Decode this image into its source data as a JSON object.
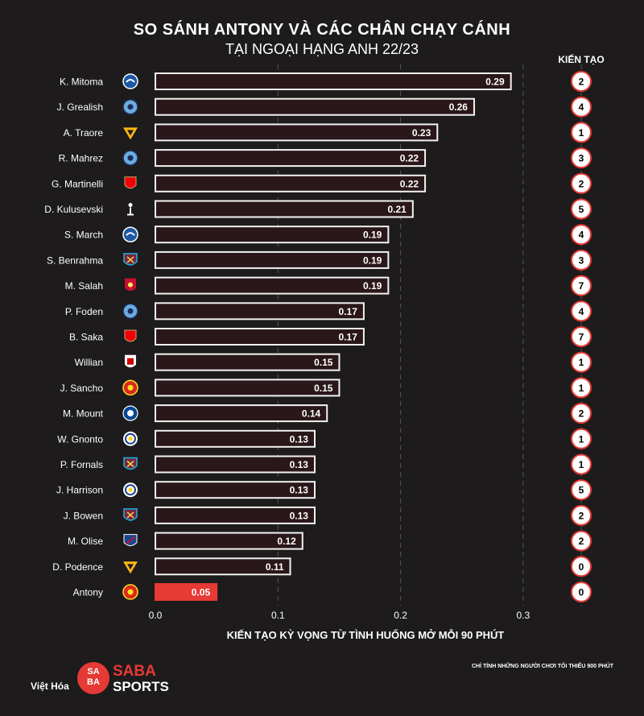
{
  "title": "SO SÁNH ANTONY VÀ CÁC CHÂN CHẠY CÁNH",
  "subtitle": "TẠI NGOẠI HẠNG ANH 22/23",
  "assist_header": "KIẾN TẠO",
  "footer": {
    "viet_hoa": "Việt Hóa",
    "logo_mark": "SA BA",
    "logo_saba": "SABA",
    "logo_sports": "SPORTS",
    "footnote": "CHỈ TÍNH NHỮNG NGƯỜI CHƠI TỐI THIỂU 900 PHÚT"
  },
  "colors": {
    "background": "#1d1b1b",
    "bar_fill": "#2a1719",
    "bar_border": "#f2f2f2",
    "highlight": "#e53a35",
    "grid": "#555555"
  },
  "chart_data": {
    "type": "bar",
    "orientation": "horizontal",
    "title": "SO SÁNH ANTONY VÀ CÁC CHÂN CHẠY CÁNH",
    "xlabel": "KIẾN TẠO KỲ VỌNG TỪ TÌNH HUỐNG MỞ MỖI 90 PHÚT",
    "xlim": [
      0,
      0.3
    ],
    "xticks": [
      "0.0",
      "0.1",
      "0.2",
      "0.3"
    ],
    "xtick_values": [
      0,
      0.1,
      0.2,
      0.3
    ],
    "grid": true,
    "highlight": "Antony",
    "players": [
      {
        "name": "K. Mitoma",
        "club": "brighton-logo",
        "value": 0.29,
        "label": "0.29",
        "assists": "2"
      },
      {
        "name": "J. Grealish",
        "club": "man-city-logo",
        "value": 0.26,
        "label": "0.26",
        "assists": "4"
      },
      {
        "name": "A. Traore",
        "club": "wolves-logo",
        "value": 0.23,
        "label": "0.23",
        "assists": "1"
      },
      {
        "name": "R. Mahrez",
        "club": "man-city-logo",
        "value": 0.22,
        "label": "0.22",
        "assists": "3"
      },
      {
        "name": "G. Martinelli",
        "club": "arsenal-logo",
        "value": 0.22,
        "label": "0.22",
        "assists": "2"
      },
      {
        "name": "D. Kulusevski",
        "club": "tottenham-logo",
        "value": 0.21,
        "label": "0.21",
        "assists": "5"
      },
      {
        "name": "S. March",
        "club": "brighton-logo",
        "value": 0.19,
        "label": "0.19",
        "assists": "4"
      },
      {
        "name": "S. Benrahma",
        "club": "west-ham-logo",
        "value": 0.19,
        "label": "0.19",
        "assists": "3"
      },
      {
        "name": "M. Salah",
        "club": "liverpool-logo",
        "value": 0.19,
        "label": "0.19",
        "assists": "7"
      },
      {
        "name": "P. Foden",
        "club": "man-city-logo",
        "value": 0.17,
        "label": "0.17",
        "assists": "4"
      },
      {
        "name": "B. Saka",
        "club": "arsenal-logo",
        "value": 0.17,
        "label": "0.17",
        "assists": "7"
      },
      {
        "name": "Willian",
        "club": "fulham-logo",
        "value": 0.15,
        "label": "0.15",
        "assists": "1"
      },
      {
        "name": "J. Sancho",
        "club": "man-utd-logo",
        "value": 0.15,
        "label": "0.15",
        "assists": "1"
      },
      {
        "name": "M. Mount",
        "club": "chelsea-logo",
        "value": 0.14,
        "label": "0.14",
        "assists": "2"
      },
      {
        "name": "W. Gnonto",
        "club": "leeds-logo",
        "value": 0.13,
        "label": "0.13",
        "assists": "1"
      },
      {
        "name": "P. Fornals",
        "club": "west-ham-logo",
        "value": 0.13,
        "label": "0.13",
        "assists": "1"
      },
      {
        "name": "J. Harrison",
        "club": "leeds-logo",
        "value": 0.13,
        "label": "0.13",
        "assists": "5"
      },
      {
        "name": "J. Bowen",
        "club": "west-ham-logo",
        "value": 0.13,
        "label": "0.13",
        "assists": "2"
      },
      {
        "name": "M. Olise",
        "club": "crystal-palace-logo",
        "value": 0.12,
        "label": "0.12",
        "assists": "2"
      },
      {
        "name": "D. Podence",
        "club": "wolves-logo",
        "value": 0.11,
        "label": "0.11",
        "assists": "0"
      },
      {
        "name": "Antony",
        "club": "man-utd-logo",
        "value": 0.05,
        "label": "0.05",
        "assists": "0"
      }
    ]
  }
}
